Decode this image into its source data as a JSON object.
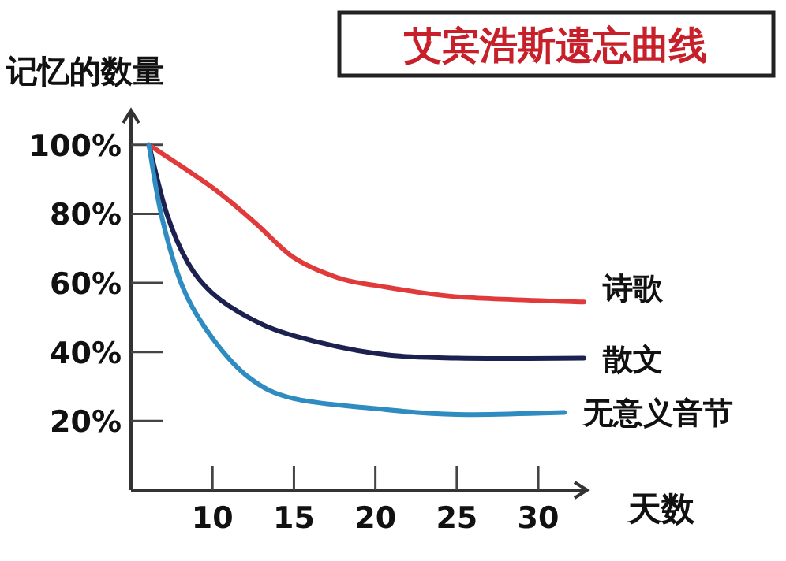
{
  "chart_data": {
    "type": "line",
    "title": "艾宾浩斯遗忘曲线",
    "xlabel": "天数",
    "ylabel": "记忆的数量",
    "xlim": [
      5,
      33
    ],
    "ylim": [
      0,
      110
    ],
    "xticks": [
      10,
      15,
      20,
      25,
      30
    ],
    "yticks": [
      {
        "value": 20,
        "label": "20%"
      },
      {
        "value": 40,
        "label": "40%"
      },
      {
        "value": 60,
        "label": "60%"
      },
      {
        "value": 80,
        "label": "80%"
      },
      {
        "value": 100,
        "label": "100%"
      }
    ],
    "grid": false,
    "series": [
      {
        "name": "诗歌",
        "color": "#e03a3a",
        "x": [
          6.1,
          10,
          12.6,
          15,
          17.7,
          20,
          25,
          32.8
        ],
        "values": [
          100,
          87.6,
          77.5,
          67.3,
          61.5,
          59.3,
          56,
          54.5
        ]
      },
      {
        "name": "散文",
        "color": "#1c2150",
        "x": [
          6.1,
          7.2,
          8.5,
          10,
          12.3,
          15,
          20,
          25,
          32.8
        ],
        "values": [
          100,
          80,
          65.8,
          57,
          49.8,
          44.7,
          39.6,
          38.2,
          38.2
        ]
      },
      {
        "name": "无意义音节",
        "color": "#2e8cc0",
        "x": [
          6.1,
          6.9,
          8.2,
          10,
          12.3,
          15,
          20,
          25,
          31.6
        ],
        "values": [
          100,
          78.9,
          58.5,
          44,
          32.4,
          26.5,
          23.6,
          21.9,
          22.5
        ]
      }
    ]
  }
}
